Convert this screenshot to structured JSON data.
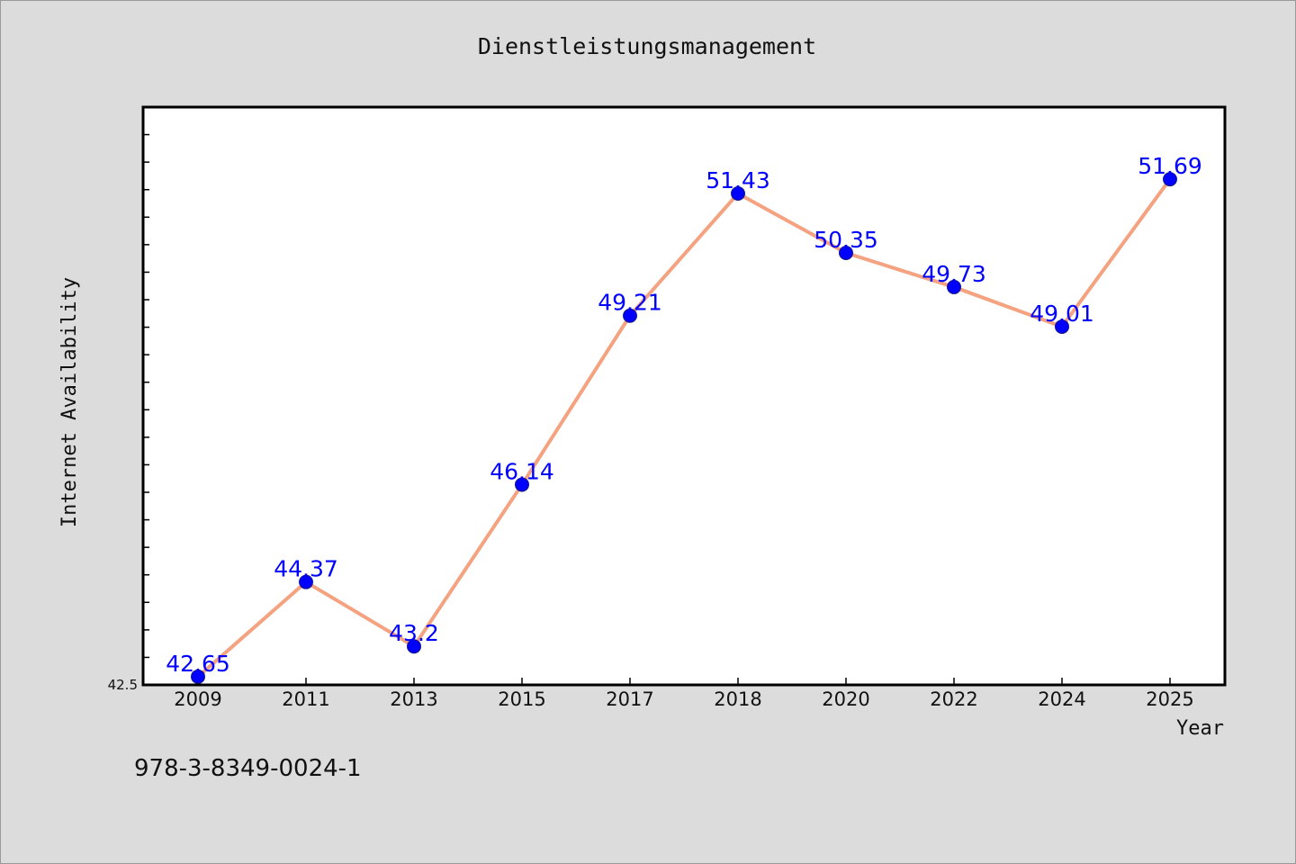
{
  "chart_data": {
    "type": "line",
    "title": "Dienstleistungsmanagement",
    "xlabel": "Year",
    "ylabel": "Internet Availability",
    "categories": [
      "2009",
      "2011",
      "2013",
      "2015",
      "2017",
      "2018",
      "2020",
      "2022",
      "2024",
      "2025"
    ],
    "series": [
      {
        "values": [
          42.65,
          44.37,
          43.2,
          46.14,
          49.21,
          51.43,
          50.35,
          49.73,
          49.01,
          51.69
        ],
        "data_labels": [
          "42.65",
          "44.37",
          "43.2",
          "46.14",
          "49.21",
          "51.43",
          "50.35",
          "49.73",
          "49.01",
          "51.69"
        ]
      }
    ],
    "ylim": [
      42.5,
      53.0
    ],
    "yticks_labeled": [
      "42.5"
    ],
    "grid": false,
    "legend": "none",
    "colors": {
      "line": "#f4a27f",
      "marker": "#0000ff",
      "marker_edge": "#1a1a80",
      "data_label": "#0000ff",
      "plot_background": "#ffffff",
      "figure_background": "#dcdcdc"
    }
  },
  "footnote": "978-3-8349-0024-1"
}
